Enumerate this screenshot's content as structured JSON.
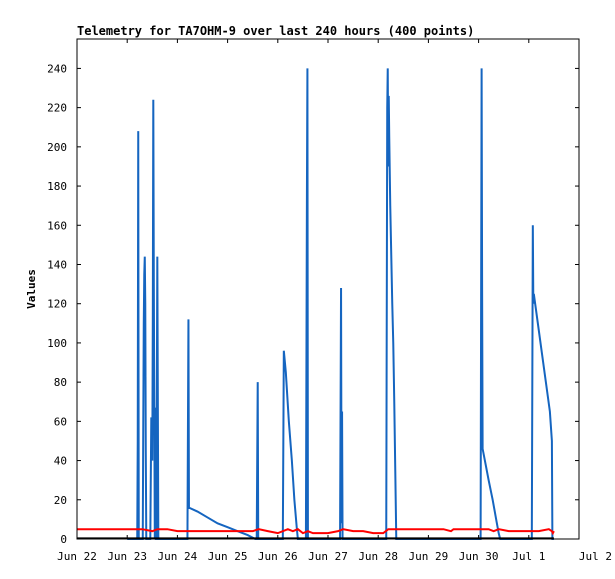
{
  "chart_data": {
    "type": "line",
    "title": "Telemetry for TA7OHM-9 over last 240 hours (400 points)",
    "ylabel": "Values",
    "xlabel": "",
    "ylim": [
      0,
      255
    ],
    "xlim": [
      0,
      10
    ],
    "yticks": [
      0,
      20,
      40,
      60,
      80,
      100,
      120,
      140,
      160,
      180,
      200,
      220,
      240
    ],
    "xticks": [
      {
        "pos": 0,
        "label": "Jun 22"
      },
      {
        "pos": 1,
        "label": "Jun 23"
      },
      {
        "pos": 2,
        "label": "Jun 24"
      },
      {
        "pos": 3,
        "label": "Jun 25"
      },
      {
        "pos": 4,
        "label": "Jun 26"
      },
      {
        "pos": 5,
        "label": "Jun 27"
      },
      {
        "pos": 6,
        "label": "Jun 28"
      },
      {
        "pos": 7,
        "label": "Jun 29"
      },
      {
        "pos": 8,
        "label": "Jun 30"
      },
      {
        "pos": 9,
        "label": "Jul 1"
      },
      {
        "pos": 10,
        "label": "Jul 2"
      }
    ],
    "grid": false,
    "series": [
      {
        "color": "#1565c0",
        "points": [
          [
            1.0,
            0
          ],
          [
            1.02,
            0
          ],
          [
            1.04,
            0
          ],
          [
            1.06,
            0
          ],
          [
            1.08,
            0
          ],
          [
            1.1,
            0
          ],
          [
            1.12,
            0
          ],
          [
            1.14,
            0
          ],
          [
            1.16,
            0
          ],
          [
            1.18,
            0
          ],
          [
            1.2,
            0
          ],
          [
            1.21,
            50
          ],
          [
            1.22,
            208
          ],
          [
            1.23,
            0
          ],
          [
            1.25,
            0
          ],
          [
            1.27,
            0
          ],
          [
            1.29,
            0
          ],
          [
            1.31,
            0
          ],
          [
            1.32,
            58
          ],
          [
            1.33,
            110
          ],
          [
            1.34,
            135
          ],
          [
            1.35,
            144
          ],
          [
            1.36,
            120
          ],
          [
            1.37,
            45
          ],
          [
            1.38,
            0
          ],
          [
            1.4,
            0
          ],
          [
            1.42,
            0
          ],
          [
            1.44,
            0
          ],
          [
            1.46,
            0
          ],
          [
            1.48,
            62
          ],
          [
            1.5,
            40
          ],
          [
            1.51,
            112
          ],
          [
            1.52,
            224
          ],
          [
            1.53,
            130
          ],
          [
            1.55,
            0
          ],
          [
            1.56,
            67
          ],
          [
            1.57,
            0
          ],
          [
            1.58,
            0
          ],
          [
            1.6,
            144
          ],
          [
            1.62,
            0
          ],
          [
            1.66,
            0
          ],
          [
            1.72,
            0
          ],
          [
            1.78,
            0
          ],
          [
            1.84,
            0
          ],
          [
            1.9,
            0
          ],
          [
            1.96,
            0
          ],
          [
            2.02,
            0
          ],
          [
            2.08,
            0
          ],
          [
            2.14,
            0
          ],
          [
            2.2,
            0
          ],
          [
            2.22,
            112
          ],
          [
            2.23,
            16
          ],
          [
            2.4,
            14
          ],
          [
            2.6,
            11
          ],
          [
            2.8,
            8
          ],
          [
            3.0,
            6
          ],
          [
            3.2,
            4
          ],
          [
            3.4,
            2
          ],
          [
            3.55,
            0
          ],
          [
            3.58,
            0
          ],
          [
            3.6,
            80
          ],
          [
            3.61,
            0
          ],
          [
            3.7,
            0
          ],
          [
            3.8,
            0
          ],
          [
            3.9,
            0
          ],
          [
            4.0,
            0
          ],
          [
            4.08,
            0
          ],
          [
            4.1,
            0
          ],
          [
            4.12,
            96
          ],
          [
            4.16,
            85
          ],
          [
            4.22,
            60
          ],
          [
            4.28,
            40
          ],
          [
            4.33,
            20
          ],
          [
            4.38,
            5
          ],
          [
            4.4,
            0
          ],
          [
            4.45,
            0
          ],
          [
            4.5,
            0
          ],
          [
            4.54,
            0
          ],
          [
            4.56,
            0
          ],
          [
            4.58,
            176
          ],
          [
            4.59,
            240
          ],
          [
            4.6,
            0
          ],
          [
            4.7,
            0
          ],
          [
            4.8,
            0
          ],
          [
            4.9,
            0
          ],
          [
            5.0,
            0
          ],
          [
            5.1,
            0
          ],
          [
            5.2,
            0
          ],
          [
            5.24,
            0
          ],
          [
            5.26,
            128
          ],
          [
            5.27,
            8
          ],
          [
            5.28,
            65
          ],
          [
            5.29,
            0
          ],
          [
            5.4,
            0
          ],
          [
            5.55,
            0
          ],
          [
            5.7,
            0
          ],
          [
            5.85,
            0
          ],
          [
            6.0,
            0
          ],
          [
            6.1,
            0
          ],
          [
            6.16,
            0
          ],
          [
            6.18,
            220
          ],
          [
            6.19,
            240
          ],
          [
            6.2,
            190
          ],
          [
            6.21,
            226
          ],
          [
            6.22,
            205
          ],
          [
            6.24,
            170
          ],
          [
            6.26,
            145
          ],
          [
            6.28,
            120
          ],
          [
            6.3,
            100
          ],
          [
            6.32,
            70
          ],
          [
            6.34,
            35
          ],
          [
            6.36,
            0
          ],
          [
            6.45,
            0
          ],
          [
            6.6,
            0
          ],
          [
            6.8,
            0
          ],
          [
            7.0,
            0
          ],
          [
            7.2,
            0
          ],
          [
            7.4,
            0
          ],
          [
            7.6,
            0
          ],
          [
            7.8,
            0
          ],
          [
            8.0,
            0
          ],
          [
            8.04,
            0
          ],
          [
            8.06,
            240
          ],
          [
            8.07,
            128
          ],
          [
            8.08,
            46
          ],
          [
            8.14,
            38
          ],
          [
            8.2,
            30
          ],
          [
            8.28,
            20
          ],
          [
            8.35,
            10
          ],
          [
            8.4,
            3
          ],
          [
            8.43,
            0
          ],
          [
            8.5,
            0
          ],
          [
            8.6,
            0
          ],
          [
            8.7,
            0
          ],
          [
            8.8,
            0
          ],
          [
            8.9,
            0
          ],
          [
            9.0,
            0
          ],
          [
            9.06,
            0
          ],
          [
            9.08,
            160
          ],
          [
            9.09,
            120
          ],
          [
            9.1,
            125
          ],
          [
            9.18,
            110
          ],
          [
            9.26,
            95
          ],
          [
            9.34,
            80
          ],
          [
            9.42,
            65
          ],
          [
            9.46,
            50
          ],
          [
            9.47,
            0
          ],
          [
            9.5,
            0
          ]
        ]
      },
      {
        "color": "#ff0000",
        "points": [
          [
            0.0,
            5
          ],
          [
            0.5,
            5
          ],
          [
            1.0,
            5
          ],
          [
            1.3,
            5
          ],
          [
            1.5,
            4
          ],
          [
            1.6,
            5
          ],
          [
            1.8,
            5
          ],
          [
            2.0,
            4
          ],
          [
            2.2,
            4
          ],
          [
            2.5,
            4
          ],
          [
            2.8,
            4
          ],
          [
            3.0,
            4
          ],
          [
            3.2,
            4
          ],
          [
            3.5,
            4
          ],
          [
            3.62,
            5
          ],
          [
            3.8,
            4
          ],
          [
            4.0,
            3
          ],
          [
            4.2,
            5
          ],
          [
            4.3,
            4
          ],
          [
            4.4,
            5
          ],
          [
            4.5,
            3
          ],
          [
            4.6,
            4
          ],
          [
            4.7,
            3
          ],
          [
            5.0,
            3
          ],
          [
            5.2,
            4
          ],
          [
            5.3,
            5
          ],
          [
            5.5,
            4
          ],
          [
            5.7,
            4
          ],
          [
            5.9,
            3
          ],
          [
            6.1,
            3
          ],
          [
            6.2,
            5
          ],
          [
            6.5,
            5
          ],
          [
            6.8,
            5
          ],
          [
            7.0,
            5
          ],
          [
            7.3,
            5
          ],
          [
            7.45,
            4
          ],
          [
            7.5,
            5
          ],
          [
            7.8,
            5
          ],
          [
            8.0,
            5
          ],
          [
            8.2,
            5
          ],
          [
            8.3,
            4
          ],
          [
            8.4,
            5
          ],
          [
            8.6,
            4
          ],
          [
            8.8,
            4
          ],
          [
            9.0,
            4
          ],
          [
            9.2,
            4
          ],
          [
            9.4,
            5
          ],
          [
            9.46,
            4
          ],
          [
            9.48,
            3
          ],
          [
            9.5,
            4
          ]
        ]
      },
      {
        "color": "#000000",
        "points": [
          [
            0.0,
            0.3
          ],
          [
            9.5,
            0.3
          ]
        ]
      }
    ]
  }
}
